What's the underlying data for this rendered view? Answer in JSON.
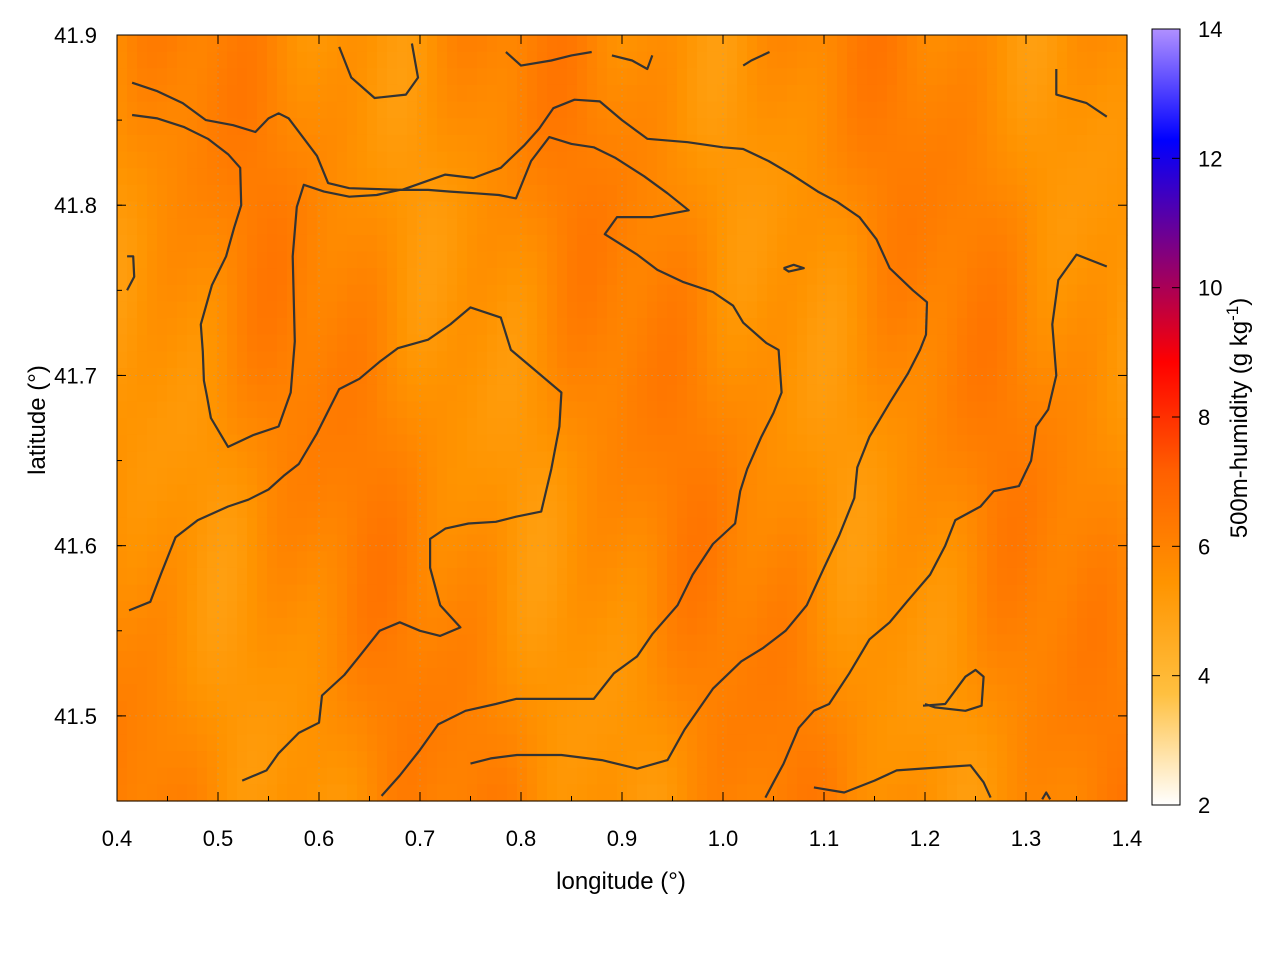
{
  "chart_data": {
    "type": "heatmap",
    "xlabel": "longitude (°)",
    "ylabel": "latitude (°)",
    "colorbar_label": "500m-humidity (g kg",
    "colorbar_label_sup": "-1",
    "colorbar_label_end": ")",
    "xlim": [
      0.4,
      1.4
    ],
    "ylim": [
      41.45,
      41.9
    ],
    "x_ticks": [
      "0.4",
      "0.5",
      "0.6",
      "0.7",
      "0.8",
      "0.9",
      "1.0",
      "1.1",
      "1.2",
      "1.3",
      "1.4"
    ],
    "y_ticks": [
      "41.5",
      "41.6",
      "41.7",
      "41.8",
      "41.9"
    ],
    "colorbar_range": [
      2,
      14
    ],
    "colorbar_ticks": [
      "2",
      "4",
      "6",
      "8",
      "10",
      "12",
      "14"
    ],
    "colormap": [
      "#ffffff",
      "#ffc040",
      "#ff9400",
      "#ff6000",
      "#ff0000",
      "#800080",
      "#0000ff",
      "#b090ff"
    ],
    "field_range": [
      5.0,
      6.5
    ],
    "grid": true,
    "contour_color": "#333333",
    "contours": [
      [
        [
          0.415,
          41.872
        ],
        [
          0.44,
          41.867
        ],
        [
          0.465,
          41.86
        ],
        [
          0.488,
          41.85
        ],
        [
          0.515,
          41.847
        ],
        [
          0.537,
          41.843
        ],
        [
          0.55,
          41.851
        ],
        [
          0.56,
          41.854
        ],
        [
          0.57,
          41.851
        ],
        [
          0.598,
          41.829
        ],
        [
          0.609,
          41.813
        ],
        [
          0.63,
          41.81
        ],
        [
          0.682,
          41.809
        ],
        [
          0.725,
          41.818
        ],
        [
          0.753,
          41.816
        ],
        [
          0.78,
          41.822
        ],
        [
          0.803,
          41.835
        ],
        [
          0.818,
          41.845
        ],
        [
          0.832,
          41.857
        ],
        [
          0.853,
          41.862
        ],
        [
          0.878,
          41.861
        ],
        [
          0.9,
          41.85
        ],
        [
          0.925,
          41.839
        ],
        [
          0.965,
          41.837
        ],
        [
          1.0,
          41.834
        ],
        [
          1.02,
          41.833
        ],
        [
          1.045,
          41.826
        ],
        [
          1.068,
          41.818
        ],
        [
          1.094,
          41.808
        ],
        [
          1.113,
          41.802
        ],
        [
          1.135,
          41.793
        ],
        [
          1.152,
          41.78
        ],
        [
          1.165,
          41.763
        ],
        [
          1.188,
          41.75
        ],
        [
          1.202,
          41.743
        ],
        [
          1.201,
          41.724
        ],
        [
          1.195,
          41.715
        ],
        [
          1.183,
          41.701
        ],
        [
          1.165,
          41.684
        ],
        [
          1.145,
          41.664
        ],
        [
          1.133,
          41.646
        ],
        [
          1.13,
          41.628
        ],
        [
          1.115,
          41.606
        ],
        [
          1.1,
          41.587
        ],
        [
          1.083,
          41.565
        ],
        [
          1.062,
          41.55
        ],
        [
          1.04,
          41.54
        ],
        [
          1.018,
          41.532
        ],
        [
          0.99,
          41.516
        ],
        [
          0.962,
          41.492
        ],
        [
          0.945,
          41.474
        ],
        [
          0.915,
          41.469
        ],
        [
          0.88,
          41.474
        ],
        [
          0.84,
          41.477
        ],
        [
          0.796,
          41.477
        ],
        [
          0.77,
          41.475
        ],
        [
          0.75,
          41.472
        ]
      ],
      [
        [
          0.415,
          41.853
        ],
        [
          0.44,
          41.851
        ],
        [
          0.466,
          41.846
        ],
        [
          0.49,
          41.839
        ],
        [
          0.51,
          41.83
        ],
        [
          0.522,
          41.822
        ],
        [
          0.523,
          41.8
        ],
        [
          0.516,
          41.787
        ],
        [
          0.508,
          41.77
        ],
        [
          0.494,
          41.753
        ],
        [
          0.483,
          41.73
        ],
        [
          0.485,
          41.714
        ],
        [
          0.486,
          41.697
        ],
        [
          0.489,
          41.688
        ],
        [
          0.493,
          41.675
        ],
        [
          0.504,
          41.664
        ],
        [
          0.51,
          41.658
        ],
        [
          0.535,
          41.665
        ],
        [
          0.56,
          41.67
        ],
        [
          0.572,
          41.69
        ],
        [
          0.576,
          41.72
        ],
        [
          0.574,
          41.77
        ],
        [
          0.578,
          41.799
        ],
        [
          0.585,
          41.812
        ],
        [
          0.605,
          41.808
        ],
        [
          0.63,
          41.805
        ],
        [
          0.657,
          41.806
        ],
        [
          0.68,
          41.809
        ],
        [
          0.708,
          41.809
        ],
        [
          0.73,
          41.808
        ],
        [
          0.755,
          41.807
        ],
        [
          0.778,
          41.806
        ],
        [
          0.795,
          41.804
        ],
        [
          0.81,
          41.826
        ],
        [
          0.828,
          41.84
        ],
        [
          0.85,
          41.836
        ],
        [
          0.872,
          41.834
        ],
        [
          0.893,
          41.828
        ],
        [
          0.922,
          41.817
        ],
        [
          0.945,
          41.807
        ],
        [
          0.966,
          41.797
        ],
        [
          0.93,
          41.793
        ],
        [
          0.895,
          41.793
        ],
        [
          0.883,
          41.783
        ],
        [
          0.915,
          41.771
        ],
        [
          0.935,
          41.762
        ],
        [
          0.96,
          41.755
        ],
        [
          0.99,
          41.749
        ],
        [
          1.01,
          41.741
        ],
        [
          1.02,
          41.731
        ],
        [
          1.043,
          41.719
        ],
        [
          1.055,
          41.715
        ],
        [
          1.058,
          41.69
        ],
        [
          1.05,
          41.678
        ],
        [
          1.038,
          41.664
        ],
        [
          1.024,
          41.645
        ],
        [
          1.017,
          41.632
        ],
        [
          1.012,
          41.613
        ],
        [
          0.99,
          41.601
        ],
        [
          0.97,
          41.583
        ],
        [
          0.955,
          41.565
        ],
        [
          0.93,
          41.548
        ],
        [
          0.915,
          41.535
        ],
        [
          0.892,
          41.525
        ],
        [
          0.872,
          41.51
        ],
        [
          0.846,
          41.51
        ],
        [
          0.795,
          41.51
        ],
        [
          0.775,
          41.507
        ],
        [
          0.745,
          41.503
        ],
        [
          0.718,
          41.495
        ],
        [
          0.7,
          41.48
        ],
        [
          0.68,
          41.465
        ],
        [
          0.662,
          41.453
        ]
      ],
      [
        [
          0.412,
          41.562
        ],
        [
          0.433,
          41.567
        ],
        [
          0.444,
          41.584
        ],
        [
          0.458,
          41.605
        ],
        [
          0.48,
          41.615
        ],
        [
          0.51,
          41.623
        ],
        [
          0.53,
          41.627
        ],
        [
          0.55,
          41.633
        ],
        [
          0.565,
          41.641
        ],
        [
          0.58,
          41.648
        ],
        [
          0.598,
          41.666
        ],
        [
          0.62,
          41.692
        ],
        [
          0.64,
          41.698
        ],
        [
          0.66,
          41.708
        ],
        [
          0.678,
          41.716
        ],
        [
          0.708,
          41.721
        ],
        [
          0.73,
          41.73
        ],
        [
          0.75,
          41.74
        ],
        [
          0.78,
          41.734
        ],
        [
          0.79,
          41.715
        ],
        [
          0.81,
          41.705
        ],
        [
          0.84,
          41.69
        ],
        [
          0.838,
          41.67
        ],
        [
          0.83,
          41.645
        ],
        [
          0.82,
          41.62
        ],
        [
          0.795,
          41.617
        ],
        [
          0.775,
          41.614
        ],
        [
          0.748,
          41.613
        ],
        [
          0.725,
          41.61
        ],
        [
          0.71,
          41.604
        ],
        [
          0.71,
          41.587
        ],
        [
          0.72,
          41.565
        ],
        [
          0.74,
          41.552
        ],
        [
          0.72,
          41.547
        ],
        [
          0.7,
          41.55
        ],
        [
          0.68,
          41.555
        ],
        [
          0.66,
          41.55
        ],
        [
          0.64,
          41.535
        ],
        [
          0.625,
          41.524
        ],
        [
          0.603,
          41.512
        ],
        [
          0.6,
          41.496
        ],
        [
          0.58,
          41.49
        ],
        [
          0.56,
          41.478
        ],
        [
          0.548,
          41.468
        ],
        [
          0.524,
          41.462
        ]
      ],
      [
        [
          0.41,
          41.77
        ],
        [
          0.416,
          41.77
        ],
        [
          0.417,
          41.758
        ],
        [
          0.41,
          41.75
        ]
      ],
      [
        [
          0.62,
          41.893
        ],
        [
          0.632,
          41.875
        ],
        [
          0.655,
          41.863
        ],
        [
          0.686,
          41.865
        ],
        [
          0.698,
          41.875
        ],
        [
          0.692,
          41.895
        ]
      ],
      [
        [
          0.785,
          41.89
        ],
        [
          0.8,
          41.882
        ],
        [
          0.83,
          41.885
        ],
        [
          0.85,
          41.888
        ],
        [
          0.87,
          41.89
        ]
      ],
      [
        [
          0.89,
          41.888
        ],
        [
          0.91,
          41.885
        ],
        [
          0.925,
          41.88
        ],
        [
          0.93,
          41.888
        ]
      ],
      [
        [
          1.02,
          41.882
        ],
        [
          1.028,
          41.885
        ],
        [
          1.046,
          41.89
        ]
      ],
      [
        [
          1.33,
          41.88
        ],
        [
          1.33,
          41.865
        ],
        [
          1.36,
          41.86
        ],
        [
          1.38,
          41.852
        ]
      ],
      [
        [
          1.38,
          41.764
        ],
        [
          1.35,
          41.771
        ],
        [
          1.332,
          41.756
        ],
        [
          1.326,
          41.73
        ],
        [
          1.33,
          41.7
        ],
        [
          1.322,
          41.68
        ],
        [
          1.31,
          41.67
        ],
        [
          1.305,
          41.65
        ],
        [
          1.293,
          41.635
        ],
        [
          1.268,
          41.632
        ],
        [
          1.255,
          41.623
        ],
        [
          1.23,
          41.615
        ],
        [
          1.22,
          41.6
        ],
        [
          1.205,
          41.583
        ],
        [
          1.182,
          41.567
        ],
        [
          1.165,
          41.555
        ],
        [
          1.145,
          41.545
        ],
        [
          1.125,
          41.525
        ],
        [
          1.105,
          41.507
        ],
        [
          1.09,
          41.503
        ],
        [
          1.075,
          41.493
        ],
        [
          1.06,
          41.472
        ],
        [
          1.05,
          41.461
        ],
        [
          1.042,
          41.452
        ]
      ],
      [
        [
          1.09,
          41.458
        ],
        [
          1.12,
          41.455
        ],
        [
          1.15,
          41.462
        ],
        [
          1.172,
          41.468
        ],
        [
          1.22,
          41.47
        ],
        [
          1.245,
          41.471
        ],
        [
          1.258,
          41.461
        ],
        [
          1.265,
          41.452
        ]
      ],
      [
        [
          1.198,
          41.506
        ],
        [
          1.22,
          41.507
        ],
        [
          1.24,
          41.523
        ],
        [
          1.25,
          41.527
        ],
        [
          1.258,
          41.523
        ],
        [
          1.256,
          41.506
        ],
        [
          1.24,
          41.503
        ],
        [
          1.21,
          41.505
        ],
        [
          1.2,
          41.507
        ]
      ],
      [
        [
          1.06,
          41.763
        ],
        [
          1.07,
          41.765
        ],
        [
          1.08,
          41.763
        ],
        [
          1.065,
          41.761
        ],
        [
          1.06,
          41.763
        ]
      ],
      [
        [
          1.316,
          41.451
        ],
        [
          1.32,
          41.455
        ],
        [
          1.324,
          41.451
        ]
      ]
    ]
  }
}
